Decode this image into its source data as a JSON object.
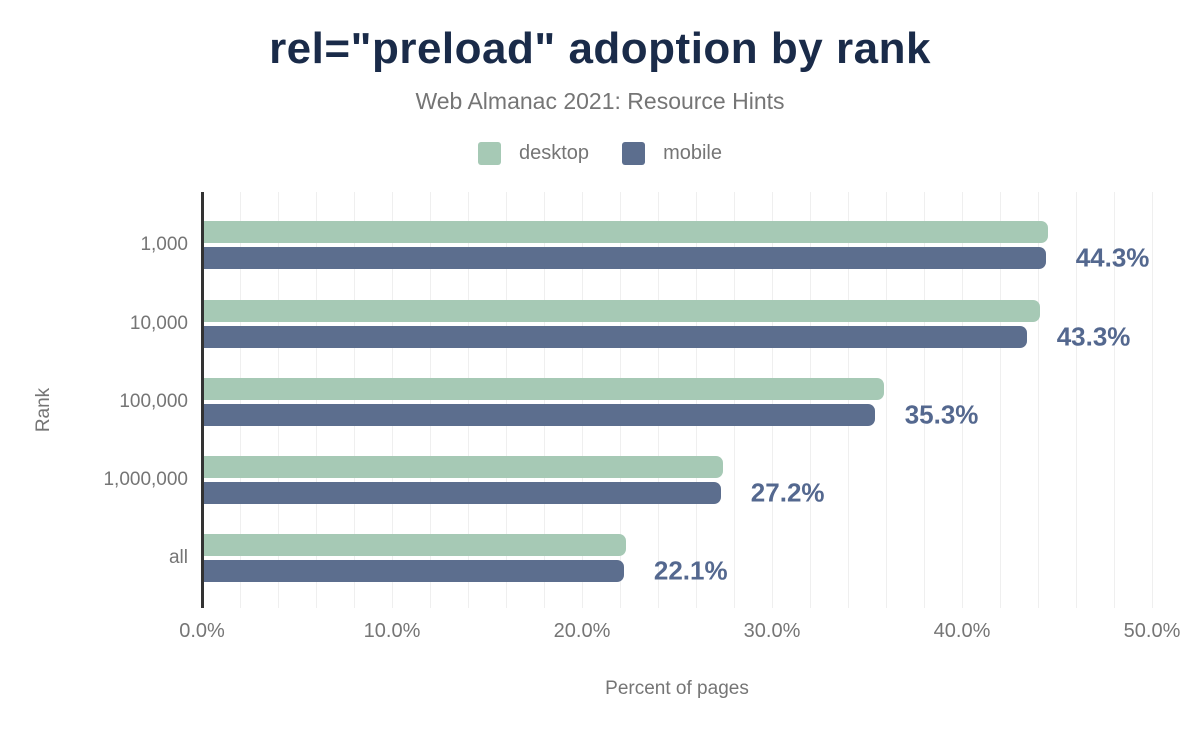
{
  "chart_data": {
    "type": "bar",
    "orientation": "horizontal",
    "title": "rel=\"preload\" adoption by rank",
    "subtitle": "Web Almanac 2021: Resource Hints",
    "xlabel": "Percent of pages",
    "ylabel": "Rank",
    "categories": [
      "1,000",
      "10,000",
      "100,000",
      "1,000,000",
      "all"
    ],
    "series": [
      {
        "name": "desktop",
        "color": "#a6c9b5",
        "values": [
          44.4,
          44.0,
          35.8,
          27.3,
          22.2
        ]
      },
      {
        "name": "mobile",
        "color": "#5c6e8e",
        "values": [
          44.3,
          43.3,
          35.3,
          27.2,
          22.1
        ]
      }
    ],
    "value_labels": [
      "44.3%",
      "43.3%",
      "35.3%",
      "27.2%",
      "22.1%"
    ],
    "value_label_series": "mobile",
    "xlim": [
      0,
      50
    ],
    "x_ticks": [
      {
        "value": 0,
        "label": "0.0%"
      },
      {
        "value": 10,
        "label": "10.0%"
      },
      {
        "value": 20,
        "label": "20.0%"
      },
      {
        "value": 30,
        "label": "30.0%"
      },
      {
        "value": 40,
        "label": "40.0%"
      },
      {
        "value": 50,
        "label": "50.0%"
      }
    ],
    "grid": {
      "show": true,
      "step_percent": 2
    },
    "legend_position": "top",
    "colors": {
      "title": "#1a2b49",
      "text_muted": "#757575",
      "value_label": "#54688f",
      "gridline": "#efefef",
      "axis_line": "#333333",
      "background": "#ffffff"
    }
  }
}
